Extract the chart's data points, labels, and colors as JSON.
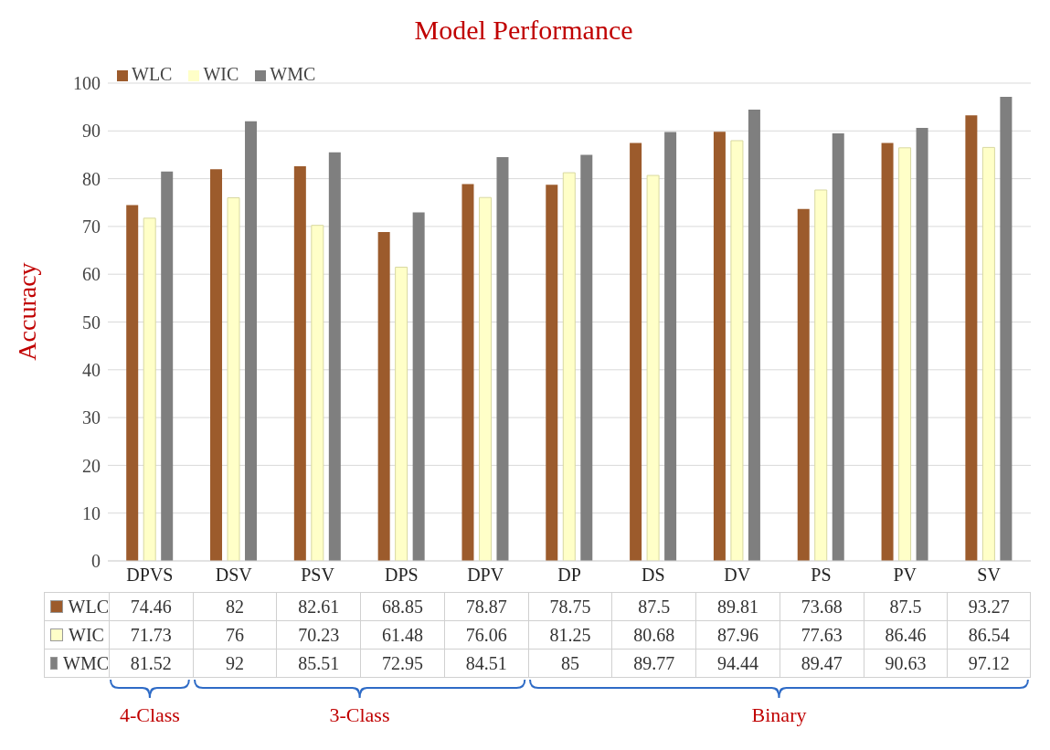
{
  "chart_data": {
    "type": "bar",
    "title": "Model Performance",
    "ylabel": "Accuracy",
    "categories": [
      "DPVS",
      "DSV",
      "PSV",
      "DPS",
      "DPV",
      "DP",
      "DS",
      "DV",
      "PS",
      "PV",
      "SV"
    ],
    "series": [
      {
        "name": "WLC",
        "color": "#9c5b2c",
        "values": [
          74.46,
          82,
          82.61,
          68.85,
          78.87,
          78.75,
          87.5,
          89.81,
          73.68,
          87.5,
          93.27
        ]
      },
      {
        "name": "WIC",
        "color": "#ffffc8",
        "values": [
          71.73,
          76,
          70.23,
          61.48,
          76.06,
          81.25,
          80.68,
          87.96,
          77.63,
          86.46,
          86.54
        ]
      },
      {
        "name": "WMC",
        "color": "#7f7f7f",
        "values": [
          81.52,
          92,
          85.51,
          72.95,
          84.51,
          85,
          89.77,
          94.44,
          89.47,
          90.63,
          97.12
        ]
      }
    ],
    "ylim": [
      0,
      100
    ],
    "yticks": [
      0,
      10,
      20,
      30,
      40,
      50,
      60,
      70,
      80,
      90,
      100
    ],
    "grid": "y",
    "legend": "top left",
    "data_labels": true,
    "annotations": [
      "4-Class",
      "3-Class",
      "Binary"
    ]
  }
}
